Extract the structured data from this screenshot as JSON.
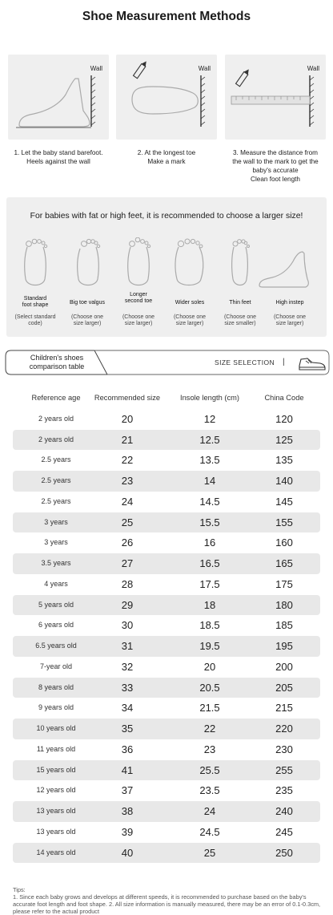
{
  "title": "Shoe Measurement Methods",
  "steps": [
    {
      "wall": "Wall",
      "text": "1. Let the baby stand barefoot.\nHeels against the wall"
    },
    {
      "wall": "Wall",
      "text": "2. At the longest toe\nMake a mark"
    },
    {
      "wall": "Wall",
      "text": "3. Measure the distance from\nthe wall to the mark to get the\nbaby's accurate\nClean foot length"
    }
  ],
  "advice": {
    "title": "For babies with fat or high feet, it is recommended to choose a larger size!",
    "feet": [
      {
        "label": "Standard\nfoot shape",
        "note": "(Select standard\ncode)"
      },
      {
        "label": "Big toe valgus",
        "note": "(Choose one\nsize larger)"
      },
      {
        "label": "Longer\nsecond toe",
        "note": "(Choose one\nsize larger)"
      },
      {
        "label": "Wider soles",
        "note": "(Choose one\nsize larger)"
      },
      {
        "label": "Thin feet",
        "note": "(Choose one\nsize smaller)"
      },
      {
        "label": "High instep",
        "note": "(Choose one\nsize larger)"
      }
    ]
  },
  "band": {
    "title": "Children's shoes\ncomparison table",
    "size_selection": "SIZE SELECTION",
    "bar": "|"
  },
  "table": {
    "columns": [
      "Reference age",
      "Recommended size",
      "Insole length (cm)",
      "China Code"
    ],
    "rows": [
      [
        "2 years old",
        "20",
        "12",
        "120"
      ],
      [
        "2 years old",
        "21",
        "12.5",
        "125"
      ],
      [
        "2.5 years",
        "22",
        "13.5",
        "135"
      ],
      [
        "2.5 years",
        "23",
        "14",
        "140"
      ],
      [
        "2.5 years",
        "24",
        "14.5",
        "145"
      ],
      [
        "3 years",
        "25",
        "15.5",
        "155"
      ],
      [
        "3 years",
        "26",
        "16",
        "160"
      ],
      [
        "3.5 years",
        "27",
        "16.5",
        "165"
      ],
      [
        "4 years",
        "28",
        "17.5",
        "175"
      ],
      [
        "5 years old",
        "29",
        "18",
        "180"
      ],
      [
        "6 years old",
        "30",
        "18.5",
        "185"
      ],
      [
        "6.5 years old",
        "31",
        "19.5",
        "195"
      ],
      [
        "7-year old",
        "32",
        "20",
        "200"
      ],
      [
        "8 years old",
        "33",
        "20.5",
        "205"
      ],
      [
        "9 years old",
        "34",
        "21.5",
        "215"
      ],
      [
        "10 years old",
        "35",
        "22",
        "220"
      ],
      [
        "11 years old",
        "36",
        "23",
        "230"
      ],
      [
        "15 years old",
        "41",
        "25.5",
        "255"
      ],
      [
        "12 years old",
        "37",
        "23.5",
        "235"
      ],
      [
        "13 years old",
        "38",
        "24",
        "240"
      ],
      [
        "13 years old",
        "39",
        "24.5",
        "245"
      ],
      [
        "14 years old",
        "40",
        "25",
        "250"
      ]
    ]
  },
  "tips": {
    "heading": "Tips:",
    "body": "1. Since each baby grows and develops at different speeds, it is recommended to purchase based on the baby's accurate foot length and foot shape. 2. All size information is manually measured, there may be an error of 0.1-0.3cm, please refer to the actual product"
  }
}
